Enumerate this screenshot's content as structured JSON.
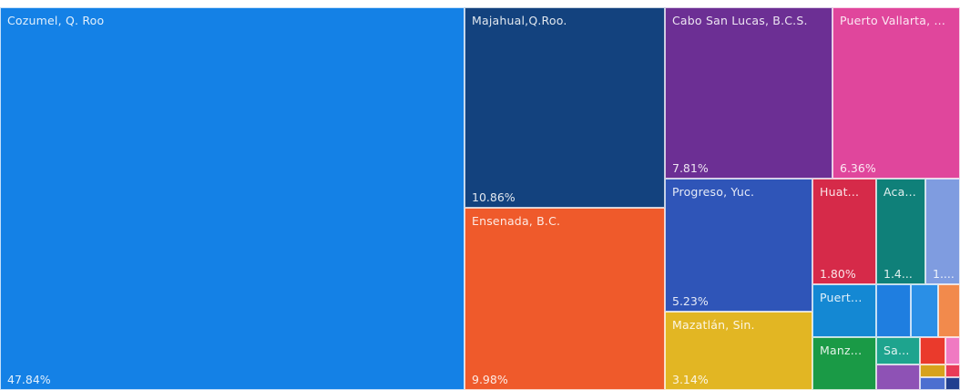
{
  "chart_data": {
    "type": "treemap",
    "title": "",
    "items": [
      {
        "label": "Cozumel, Q. Roo",
        "value_label": "47.84%",
        "color": "#1481e6"
      },
      {
        "label": "Majahual,Q.Roo.",
        "value_label": "10.86%",
        "color": "#13427e"
      },
      {
        "label": "Ensenada, B.C.",
        "value_label": "9.98%",
        "color": "#ef5a2b"
      },
      {
        "label": "Cabo San Lucas, B.C.S.",
        "value_label": "7.81%",
        "color": "#6c2f94"
      },
      {
        "label": "Puerto Vallarta, ...",
        "value_label": "6.36%",
        "color": "#e0469c"
      },
      {
        "label": "Progreso, Yuc.",
        "value_label": "5.23%",
        "color": "#2f55b8"
      },
      {
        "label": "Mazatlán, Sin.",
        "value_label": "3.14%",
        "color": "#e2b623"
      },
      {
        "label": "Huat...",
        "value_label": "1.80%",
        "color": "#d62a49"
      },
      {
        "label": "Aca...",
        "value_label": "1.4...",
        "color": "#0f8079"
      },
      {
        "label": "",
        "value_label": "1....",
        "color": "#7f9ce0"
      },
      {
        "label": "Puert...",
        "value_label": "",
        "color": "#1488d3"
      },
      {
        "label": "Manz...",
        "value_label": "",
        "color": "#1a9a46"
      },
      {
        "label": "Sa...",
        "value_label": "",
        "color": "#1ea48e"
      },
      {
        "label": "",
        "value_label": "",
        "color": "#1f7ee0"
      },
      {
        "label": "",
        "value_label": "",
        "color": "#2a8fe6"
      },
      {
        "label": "",
        "value_label": "",
        "color": "#f28a4c"
      },
      {
        "label": "",
        "value_label": "",
        "color": "#ea3a2c"
      },
      {
        "label": "",
        "value_label": "",
        "color": "#f07ac2"
      },
      {
        "label": "",
        "value_label": "",
        "color": "#8e52b5"
      },
      {
        "label": "",
        "value_label": "",
        "color": "#d7a21c"
      },
      {
        "label": "",
        "value_label": "",
        "color": "#4c6fd0"
      },
      {
        "label": "",
        "value_label": "",
        "color": "#e83b57"
      },
      {
        "label": "",
        "value_label": "",
        "color": "#223f8f"
      }
    ]
  }
}
